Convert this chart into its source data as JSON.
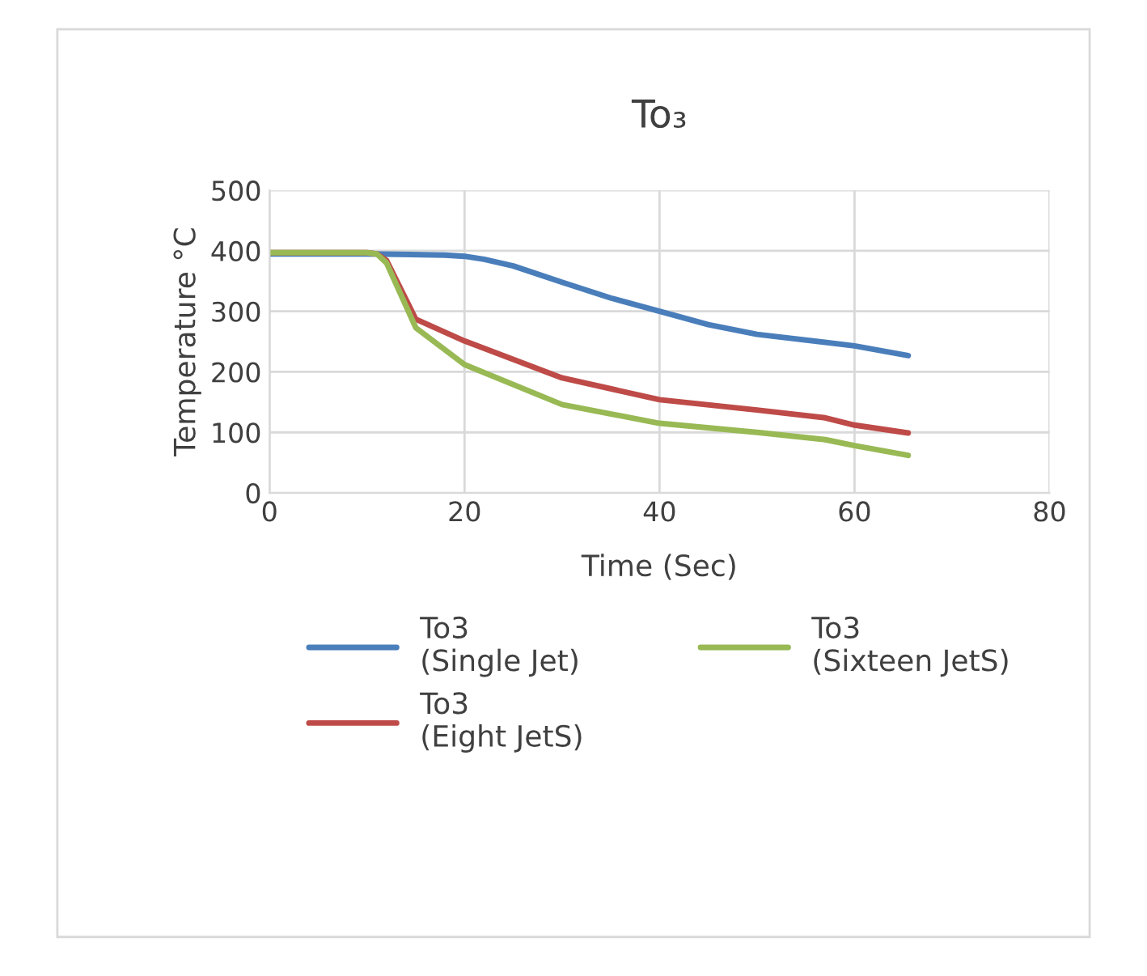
{
  "chart_data": {
    "type": "line",
    "title": "To₃",
    "xlabel": "Time (Sec)",
    "ylabel": "Temperature °C",
    "xlim": [
      0,
      80
    ],
    "xticks": [
      0,
      20,
      40,
      60,
      80
    ],
    "ylim": [
      0,
      500
    ],
    "yticks": [
      0,
      100,
      200,
      300,
      400,
      500
    ],
    "grid": true,
    "legend": "bottom",
    "marker": "none",
    "line_style": "solid",
    "series": [
      {
        "name": "To3\n(Single Jet)",
        "color": "#4a7ebb",
        "x": [
          0,
          10,
          18,
          20,
          22,
          25,
          30,
          35,
          40,
          45,
          50,
          60,
          65.5
        ],
        "values": [
          395,
          395,
          393,
          391,
          386,
          375,
          348,
          322,
          300,
          278,
          262,
          243,
          227
        ]
      },
      {
        "name": "To3\n(Eight JetS)",
        "color": "#be4b48",
        "x": [
          0,
          10,
          11,
          12,
          15,
          20,
          30,
          40,
          50,
          57,
          60,
          65.5
        ],
        "values": [
          397,
          397,
          395,
          384,
          287,
          251,
          190,
          154,
          137,
          124,
          112,
          99
        ]
      },
      {
        "name": "To3\n(Sixteen JetS)",
        "color": "#98b954",
        "x": [
          0,
          10,
          11,
          12,
          15,
          20,
          30,
          40,
          50,
          57,
          60,
          65.5
        ],
        "values": [
          397,
          397,
          395,
          380,
          273,
          212,
          146,
          115,
          100,
          88,
          78,
          62
        ]
      }
    ]
  }
}
